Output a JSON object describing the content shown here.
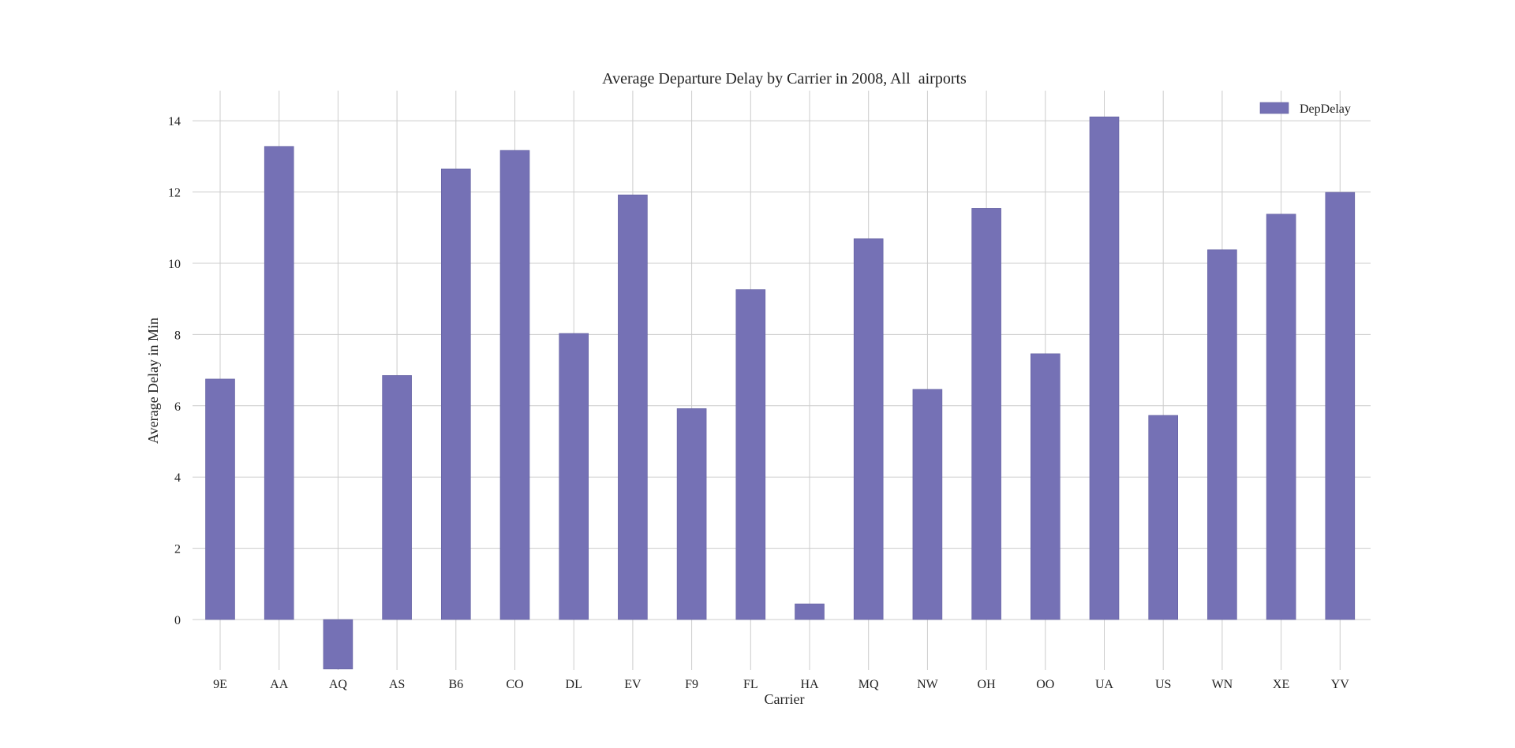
{
  "chart_data": {
    "type": "bar",
    "title": "Average Departure Delay by Carrier in 2008, All  airports",
    "xlabel": "Carrier",
    "ylabel": "Average Delay in Min",
    "categories": [
      "9E",
      "AA",
      "AQ",
      "AS",
      "B6",
      "CO",
      "DL",
      "EV",
      "F9",
      "FL",
      "HA",
      "MQ",
      "NW",
      "OH",
      "OO",
      "UA",
      "US",
      "WN",
      "XE",
      "YV"
    ],
    "series": [
      {
        "name": "DepDelay",
        "values": [
          6.75,
          13.28,
          -1.39,
          6.85,
          12.65,
          13.17,
          8.03,
          11.92,
          5.92,
          9.26,
          0.44,
          10.69,
          6.46,
          11.54,
          7.46,
          14.11,
          5.73,
          10.38,
          11.38,
          11.99
        ],
        "color": "#7571b5"
      }
    ],
    "ylim": [
      -1.4,
      14.9
    ],
    "yticks": [
      0,
      2,
      4,
      6,
      8,
      10,
      12,
      14
    ],
    "grid": true,
    "legend": "top-right"
  }
}
